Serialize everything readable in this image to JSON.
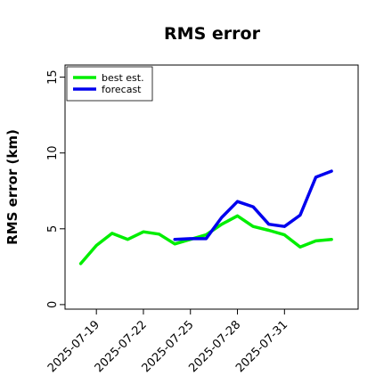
{
  "chart_data": {
    "type": "line",
    "title": "RMS error",
    "xlabel": "",
    "ylabel": "RMS error (km)",
    "x_tick_labels": [
      "2025-07-19",
      "2025-07-22",
      "2025-07-25",
      "2025-07-28",
      "2025-07-31"
    ],
    "x_tick_values": [
      1,
      4,
      7,
      10,
      13
    ],
    "xlim": [
      -1,
      17.7
    ],
    "y_ticks": [
      0,
      5,
      10,
      15
    ],
    "ylim": [
      -0.3,
      15.8
    ],
    "grid": false,
    "legend_position": "top-left",
    "series": [
      {
        "name": "best est.",
        "color": "#00ee00",
        "x": [
          0,
          1,
          2,
          3,
          4,
          5,
          6,
          7,
          8,
          9,
          10,
          11,
          12,
          13,
          14,
          15,
          16
        ],
        "y": [
          2.7,
          3.9,
          4.7,
          4.3,
          4.8,
          4.65,
          4.0,
          4.3,
          4.6,
          5.3,
          5.85,
          5.15,
          4.9,
          4.6,
          3.8,
          4.2,
          4.3
        ]
      },
      {
        "name": "forecast",
        "color": "#0000ee",
        "x": [
          6,
          7,
          8,
          9,
          10,
          11,
          12,
          13,
          14,
          15,
          16
        ],
        "y": [
          4.3,
          4.35,
          4.35,
          5.75,
          6.8,
          6.45,
          5.3,
          5.15,
          5.9,
          8.4,
          8.8
        ]
      }
    ]
  }
}
